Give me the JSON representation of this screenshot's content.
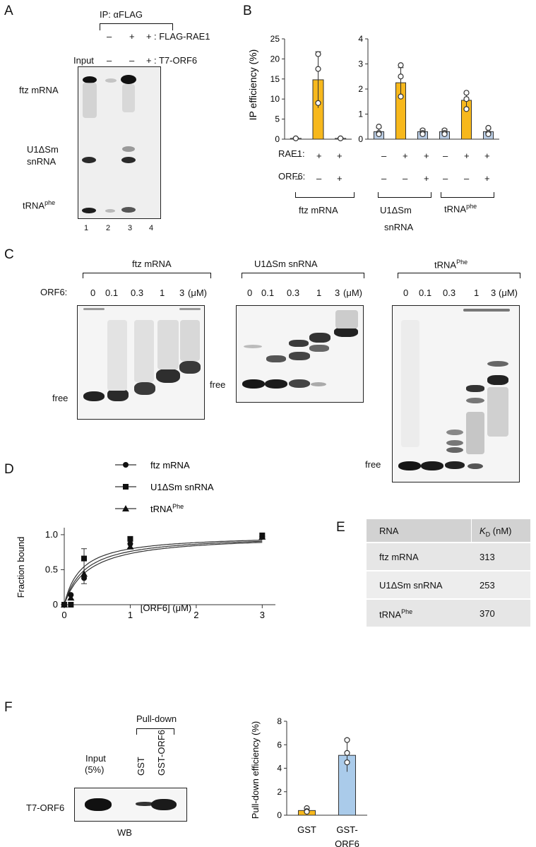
{
  "panels": {
    "A": "A",
    "B": "B",
    "C": "C",
    "D": "D",
    "E": "E",
    "F": "F"
  },
  "panelA": {
    "ip_label": "IP: αFLAG",
    "flag_signs": [
      "–",
      "+",
      "+"
    ],
    "flag_label": ": FLAG-RAE1",
    "input_label": "Input",
    "t7_signs": [
      "–",
      "–",
      "+"
    ],
    "t7_label": ": T7-ORF6",
    "row_labels": {
      "ftz": "ftz mRNA",
      "u1_line1": "U1ΔSm",
      "u1_line2": "snRNA",
      "trna": "tRNA",
      "trna_sup": "phe"
    },
    "lanes": [
      "1",
      "2",
      "3",
      "4"
    ]
  },
  "panelB": {
    "ylabel": "IP efficiency (%)",
    "rae1_label": "RAE1:",
    "orf6_label": "ORF6:",
    "rae1_signs": [
      "–",
      "+",
      "+",
      "–",
      "+",
      "+",
      "–",
      "+",
      "+"
    ],
    "orf6_signs": [
      "–",
      "–",
      "+",
      "–",
      "–",
      "+",
      "–",
      "–",
      "+"
    ],
    "group_labels": {
      "ftz": "ftz mRNA",
      "u1_line1": "U1ΔSm",
      "u1_line2": "snRNA",
      "trna": "tRNA",
      "trna_sup": "phe"
    }
  },
  "panelC": {
    "orf6_label": "ORF6:",
    "unit": "(μM)",
    "concentrations": [
      "0",
      "0.1",
      "0.3",
      "1",
      "3"
    ],
    "titles": {
      "ftz": "ftz mRNA",
      "u1": "U1ΔSm snRNA",
      "trna": "tRNA",
      "trna_sup": "Phe"
    },
    "free_label": "free"
  },
  "panelD": {
    "legend": [
      {
        "name": "ftz mRNA",
        "marker": "circle"
      },
      {
        "name": "U1ΔSm snRNA",
        "marker": "square"
      },
      {
        "name": "tRNA",
        "sup": "Phe",
        "marker": "triangle"
      }
    ]
  },
  "panelE": {
    "header": {
      "rna": "RNA",
      "kd_italic": "K",
      "kd_sub": "D",
      "kd_unit": " (nM)"
    },
    "rows": [
      {
        "rna": "ftz mRNA",
        "kd": "313"
      },
      {
        "rna": "U1ΔSm snRNA",
        "kd": "253"
      },
      {
        "rna": "tRNA",
        "rna_sup": "Phe",
        "kd": "370"
      }
    ],
    "colors": {
      "header_bg": "#d2d2d2",
      "row_bg": "#e6e6e6",
      "row_bg_alt": "#ededed"
    }
  },
  "panelF": {
    "pulldown_label": "Pull-down",
    "input_label_1": "Input",
    "input_label_2": "(5%)",
    "lane_gst": "GST",
    "lane_gst_orf6": "GST-ORF6",
    "row_label": "T7-ORF6",
    "wb_label": "WB"
  },
  "chart_data": [
    {
      "id": "B-ftz",
      "type": "bar",
      "categories": [
        "1",
        "2",
        "3"
      ],
      "values": [
        0.2,
        14.8,
        0.2
      ],
      "errors": [
        0.2,
        7.0,
        0.2
      ],
      "points": [
        [
          0.2
        ],
        [
          21.2,
          17.5,
          9.0
        ],
        [
          0.2
        ]
      ],
      "ylim": [
        0,
        25
      ],
      "yticks": [
        0,
        5,
        10,
        15,
        20,
        25
      ],
      "ylabel": "IP efficiency (%)",
      "colors": [
        "#ffffff",
        "#f7b81c",
        "#ffffff"
      ]
    },
    {
      "id": "B-u1-trna",
      "type": "bar",
      "categories": [
        "1",
        "2",
        "3",
        "4",
        "5",
        "6"
      ],
      "values": [
        0.3,
        2.25,
        0.3,
        0.3,
        1.55,
        0.3
      ],
      "errors": [
        0.15,
        0.6,
        0.1,
        0.1,
        0.3,
        0.1
      ],
      "points": [
        [
          0.5,
          0.25,
          0.2
        ],
        [
          2.95,
          2.5,
          1.7
        ],
        [
          0.35,
          0.25,
          0.2
        ],
        [
          0.35,
          0.25,
          0.2
        ],
        [
          1.85,
          1.6,
          1.2
        ],
        [
          0.45,
          0.25,
          0.2
        ]
      ],
      "ylim": [
        0,
        4
      ],
      "yticks": [
        0,
        1,
        2,
        3,
        4
      ],
      "colors": [
        "#b9cce4",
        "#f7b81c",
        "#b9cce4",
        "#b9cce4",
        "#f7b81c",
        "#b9cce4"
      ]
    },
    {
      "id": "D",
      "type": "scatter",
      "xlabel": "[ORF6] (μM)",
      "ylabel": "Fraction bound",
      "xlim": [
        0,
        3.2
      ],
      "ylim": [
        0,
        1.1
      ],
      "xticks": [
        0,
        1,
        2,
        3
      ],
      "yticks": [
        0,
        0.5,
        1.0
      ],
      "ytick_labels": [
        "0",
        "0.5",
        "1.0"
      ],
      "series": [
        {
          "name": "ftz mRNA",
          "marker": "circle",
          "kd": 0.313,
          "x": [
            0,
            0.1,
            0.3,
            1,
            3
          ],
          "y": [
            0,
            0.14,
            0.38,
            0.87,
            0.97
          ]
        },
        {
          "name": "U1ΔSm snRNA",
          "marker": "square",
          "kd": 0.253,
          "x": [
            0,
            0.1,
            0.3,
            1,
            3
          ],
          "y": [
            0,
            0.0,
            0.66,
            0.94,
            0.99
          ]
        },
        {
          "name": "tRNAPhe",
          "marker": "triangle",
          "kd": 0.37,
          "x": [
            0,
            0.1,
            0.3,
            1,
            3
          ],
          "y": [
            0,
            0.1,
            0.44,
            0.83,
            0.97
          ]
        }
      ],
      "error_bar": {
        "x": 0.3,
        "low": 0.3,
        "high": 0.8
      }
    },
    {
      "id": "F",
      "type": "bar",
      "ylabel": "Pull-down efficiency (%)",
      "categories": [
        "GST",
        "GST-ORF6"
      ],
      "category_lines": [
        [
          "GST"
        ],
        [
          "GST-",
          "ORF6"
        ]
      ],
      "values": [
        0.4,
        5.1
      ],
      "errors": [
        0.2,
        1.4
      ],
      "points": [
        [
          0.6,
          0.35,
          0.3
        ],
        [
          6.4,
          5.3,
          4.5
        ]
      ],
      "ylim": [
        0,
        8
      ],
      "yticks": [
        0,
        2,
        4,
        6,
        8
      ],
      "colors": [
        "#f7b81c",
        "#aacbea"
      ]
    }
  ]
}
